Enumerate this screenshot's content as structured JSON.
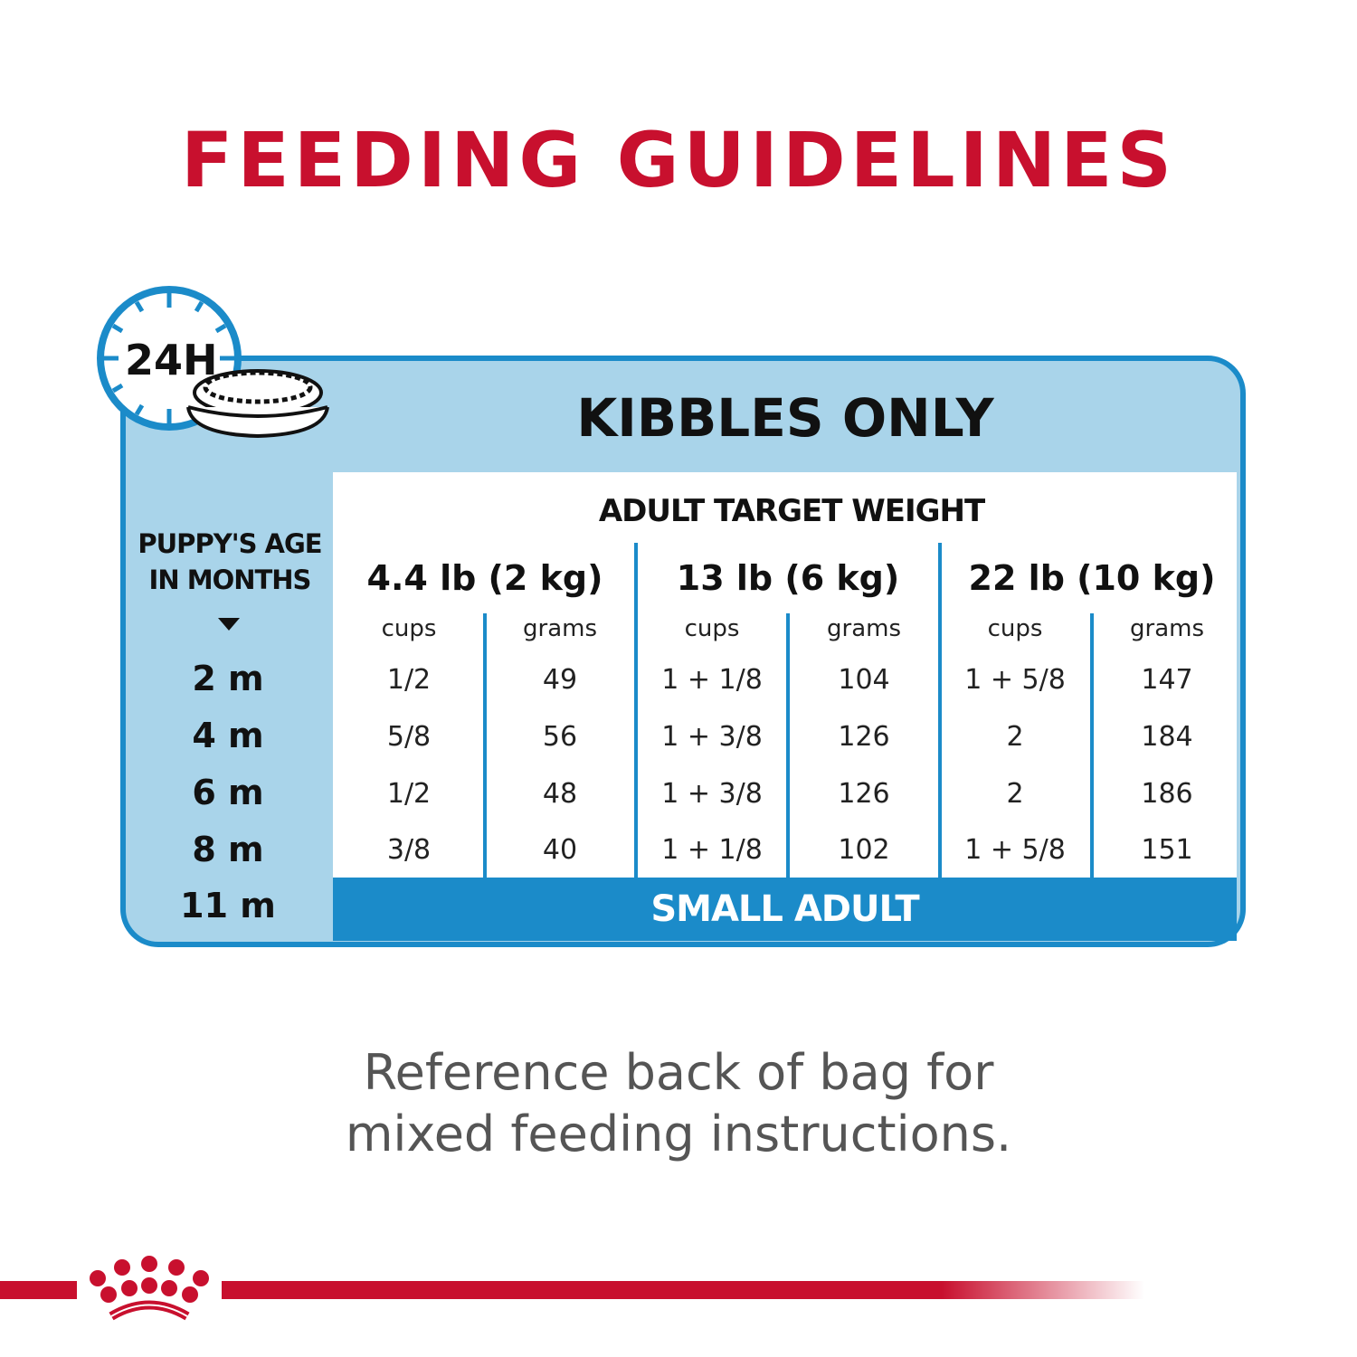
{
  "title": "FEEDING GUIDELINES",
  "clock_label": "24H",
  "section_title": "KIBBLES ONLY",
  "age_label": [
    "PUPPY'S AGE",
    "IN MONTHS"
  ],
  "weight_header": "ADULT TARGET WEIGHT",
  "groups": [
    "4.4 lb (2 kg)",
    "13 lb (6 kg)",
    "22 lb (10 kg)"
  ],
  "sub_headers": [
    "cups",
    "grams",
    "cups",
    "grams",
    "cups",
    "grams"
  ],
  "ages": [
    "2 m",
    "4 m",
    "6 m",
    "8 m",
    "11 m"
  ],
  "rows": [
    [
      "1/2",
      "49",
      "1 + 1/8",
      "104",
      "1 + 5/8",
      "147"
    ],
    [
      "5/8",
      "56",
      "1 + 3/8",
      "126",
      "2",
      "184"
    ],
    [
      "1/2",
      "48",
      "1 + 3/8",
      "126",
      "2",
      "186"
    ],
    [
      "3/8",
      "40",
      "1 + 1/8",
      "102",
      "1 + 5/8",
      "151"
    ]
  ],
  "final_stage": "SMALL ADULT",
  "footer": [
    "Reference back of bag for",
    "mixed feeding instructions."
  ],
  "colors": {
    "red": "#c8102e",
    "blue": "#1b8bc9",
    "light_blue": "#a9d4ea"
  },
  "icons": [
    "clock-icon",
    "food-bowl-icon",
    "crown-logo-icon",
    "triangle-down-icon"
  ]
}
